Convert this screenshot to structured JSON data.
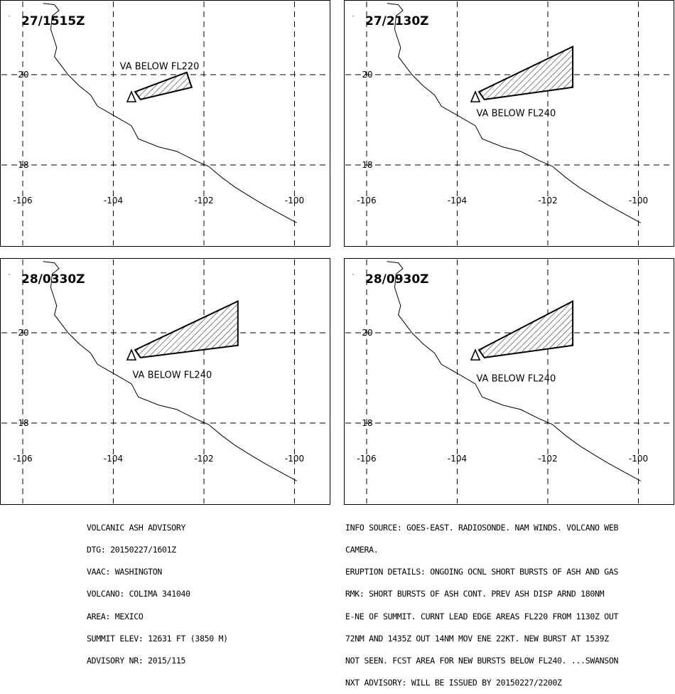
{
  "panels": [
    {
      "time": "27/1515Z",
      "label": "VA BELOW FL220",
      "polygon": [
        [
          -103.52,
          19.62
        ],
        [
          -102.38,
          20.05
        ],
        [
          -102.27,
          19.72
        ],
        [
          -103.4,
          19.45
        ]
      ],
      "label_at": [
        -102.98,
        20.12
      ]
    },
    {
      "time": "27/2130Z",
      "label": "VA BELOW FL240",
      "polygon": [
        [
          -103.52,
          19.62
        ],
        [
          -101.45,
          20.62
        ],
        [
          -101.45,
          19.72
        ],
        [
          -103.4,
          19.45
        ]
      ],
      "label_at": [
        -102.7,
        19.08
      ]
    },
    {
      "time": "28/0330Z",
      "label": "VA BELOW FL240",
      "polygon": [
        [
          -103.52,
          19.62
        ],
        [
          -101.25,
          20.7
        ],
        [
          -101.25,
          19.72
        ],
        [
          -103.4,
          19.45
        ]
      ],
      "label_at": [
        -102.7,
        19.0
      ]
    },
    {
      "time": "28/0930Z",
      "label": "VA BELOW FL240",
      "polygon": [
        [
          -103.52,
          19.62
        ],
        [
          -101.45,
          20.7
        ],
        [
          -101.45,
          19.72
        ],
        [
          -103.4,
          19.45
        ]
      ],
      "label_at": [
        -102.7,
        18.92
      ]
    }
  ],
  "map": {
    "lon_ticks": [
      -106,
      -104,
      -102,
      -100
    ],
    "lat_ticks": [
      20,
      18
    ],
    "volcano": [
      -103.6,
      19.51
    ],
    "coastline": [
      [
        -105.55,
        21.58
      ],
      [
        -105.3,
        21.55
      ],
      [
        -105.2,
        21.42
      ],
      [
        -105.35,
        21.3
      ],
      [
        -105.38,
        21.0
      ],
      [
        -105.25,
        20.6
      ],
      [
        -105.3,
        20.4
      ],
      [
        -105.0,
        20.0
      ],
      [
        -104.75,
        19.75
      ],
      [
        -104.5,
        19.55
      ],
      [
        -104.35,
        19.3
      ],
      [
        -104.0,
        19.1
      ],
      [
        -103.6,
        18.87
      ],
      [
        -103.45,
        18.58
      ],
      [
        -103.0,
        18.4
      ],
      [
        -102.6,
        18.3
      ],
      [
        -102.2,
        18.1
      ],
      [
        -101.9,
        17.97
      ],
      [
        -101.6,
        17.72
      ],
      [
        -101.3,
        17.5
      ],
      [
        -100.9,
        17.25
      ],
      [
        -100.65,
        17.1
      ],
      [
        -100.25,
        16.88
      ],
      [
        -99.95,
        16.72
      ]
    ]
  },
  "advisory_left": [
    "VOLCANIC ASH ADVISORY",
    "DTG: 20150227/1601Z",
    "VAAC: WASHINGTON",
    "VOLCANO: COLIMA 341040",
    "AREA: MEXICO",
    "SUMMIT ELEV: 12631 FT (3850 M)",
    "ADVISORY NR: 2015/115"
  ],
  "advisory_right": [
    "INFO SOURCE: GOES-EAST. RADIOSONDE. NAM WINDS. VOLCANO WEB",
    "CAMERA.",
    "ERUPTION DETAILS: ONGOING OCNL SHORT BURSTS OF ASH AND GAS",
    "RMK: SHORT BURSTS OF ASH CONT. PREV ASH DISP ARND 180NM",
    "E-NE OF SUMMIT. CURNT LEAD EDGE AREAS FL220 FROM 1130Z OUT",
    "72NM AND 1435Z OUT 14NM MOV ENE 22KT. NEW BURST AT 1539Z",
    "NOT SEEN. FCST AREA FOR NEW BURSTS BELOW FL240. ...SWANSON",
    "NXT ADVISORY: WILL BE ISSUED BY 20150227/2200Z"
  ]
}
